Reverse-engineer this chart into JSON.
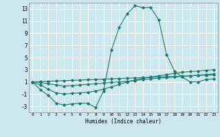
{
  "title": "",
  "xlabel": "Humidex (Indice chaleur)",
  "bg_color": "#cce8ee",
  "grid_color": "#ffffff",
  "line_color": "#1a7a6e",
  "xlim": [
    -0.5,
    23.5
  ],
  "ylim": [
    -4,
    14
  ],
  "xticks": [
    0,
    1,
    2,
    3,
    4,
    5,
    6,
    7,
    8,
    9,
    10,
    11,
    12,
    13,
    14,
    15,
    16,
    17,
    18,
    19,
    20,
    21,
    22,
    23
  ],
  "yticks": [
    -3,
    -1,
    1,
    3,
    5,
    7,
    9,
    11,
    13
  ],
  "lines": [
    {
      "x": [
        0,
        1,
        2,
        3,
        4,
        5,
        6,
        7,
        8,
        9,
        10,
        11,
        12,
        13,
        14,
        15,
        16,
        17,
        18,
        19,
        20,
        21,
        22,
        23
      ],
      "y": [
        1.0,
        -0.3,
        -1.2,
        -2.5,
        -2.8,
        -2.6,
        -2.5,
        -2.5,
        -3.2,
        -0.5,
        6.2,
        10.0,
        12.2,
        13.5,
        13.2,
        13.2,
        11.2,
        5.5,
        2.8,
        1.8,
        1.0,
        1.0,
        1.4,
        1.5
      ]
    },
    {
      "x": [
        0,
        1,
        2,
        3,
        4,
        5,
        6,
        7,
        8,
        9,
        10,
        11,
        12,
        13,
        14,
        15,
        16,
        17,
        18,
        19,
        20,
        21,
        22,
        23
      ],
      "y": [
        1.0,
        0.5,
        -0.2,
        -0.8,
        -1.0,
        -0.9,
        -0.8,
        -0.7,
        -0.5,
        -0.2,
        0.2,
        0.6,
        1.0,
        1.3,
        1.6,
        1.8,
        2.0,
        2.2,
        2.4,
        2.6,
        2.7,
        2.8,
        2.9,
        3.0
      ]
    },
    {
      "x": [
        0,
        1,
        2,
        3,
        4,
        5,
        6,
        7,
        8,
        9,
        10,
        11,
        12,
        13,
        14,
        15,
        16,
        17,
        18,
        19,
        20,
        21,
        22,
        23
      ],
      "y": [
        1.0,
        0.9,
        0.7,
        0.5,
        0.3,
        0.4,
        0.5,
        0.6,
        0.7,
        0.8,
        0.9,
        1.0,
        1.1,
        1.2,
        1.4,
        1.5,
        1.6,
        1.7,
        1.8,
        1.9,
        2.0,
        2.1,
        2.2,
        2.3
      ]
    },
    {
      "x": [
        0,
        1,
        2,
        3,
        4,
        5,
        6,
        7,
        8,
        9,
        10,
        11,
        12,
        13,
        14,
        15,
        16,
        17,
        18,
        19,
        20,
        21,
        22,
        23
      ],
      "y": [
        1.0,
        1.05,
        1.1,
        1.15,
        1.2,
        1.25,
        1.3,
        1.35,
        1.4,
        1.45,
        1.5,
        1.55,
        1.6,
        1.65,
        1.7,
        1.75,
        1.8,
        1.85,
        1.9,
        1.95,
        2.0,
        2.05,
        2.1,
        2.15
      ]
    }
  ]
}
